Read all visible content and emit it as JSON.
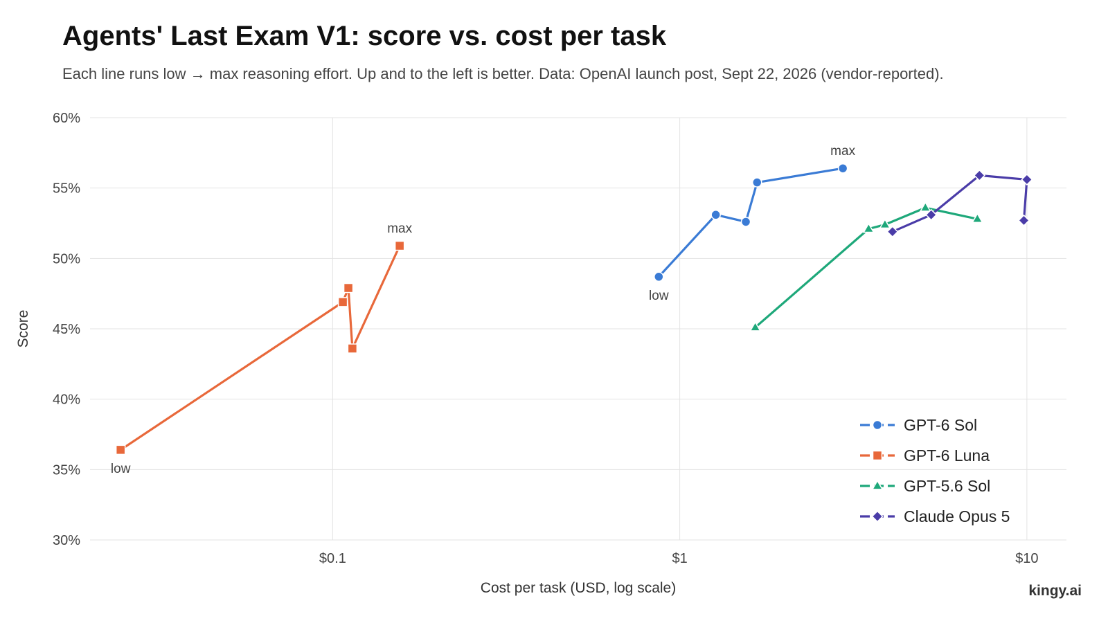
{
  "title": "Agents' Last Exam V1: score vs. cost per task",
  "subtitle": "Each line runs low → max reasoning effort. Up and to the left is better. Data: OpenAI launch post, Sept 22, 2026 (vendor-reported).",
  "brand": "kingy.ai",
  "chart_data": {
    "type": "line",
    "xlabel": "Cost per task (USD, log scale)",
    "ylabel": "Score",
    "x_scale": "log",
    "xlim": [
      0.02,
      13
    ],
    "ylim": [
      30,
      60
    ],
    "x_ticks": [
      {
        "value": 0.1,
        "label": "$0.1"
      },
      {
        "value": 1,
        "label": "$1"
      },
      {
        "value": 10,
        "label": "$10"
      }
    ],
    "y_ticks": [
      {
        "value": 30,
        "label": "30%"
      },
      {
        "value": 35,
        "label": "35%"
      },
      {
        "value": 40,
        "label": "40%"
      },
      {
        "value": 45,
        "label": "45%"
      },
      {
        "value": 50,
        "label": "50%"
      },
      {
        "value": 55,
        "label": "55%"
      },
      {
        "value": 60,
        "label": "60%"
      }
    ],
    "grid": true,
    "legend_position": "bottom-right",
    "series": [
      {
        "name": "GPT-6 Sol",
        "color": "#3a7bd5",
        "marker": "circle",
        "points": [
          [
            0.87,
            48.7
          ],
          [
            1.27,
            53.1
          ],
          [
            1.55,
            52.6
          ],
          [
            1.67,
            55.4
          ],
          [
            2.95,
            56.4
          ]
        ],
        "annotations": [
          {
            "text": "low",
            "point": 0,
            "position": "below"
          },
          {
            "text": "max",
            "point": 4,
            "position": "above"
          }
        ]
      },
      {
        "name": "GPT-6 Luna",
        "color": "#e8683a",
        "marker": "square",
        "points": [
          [
            0.0245,
            36.4
          ],
          [
            0.107,
            46.9
          ],
          [
            0.111,
            47.9
          ],
          [
            0.114,
            43.6
          ],
          [
            0.156,
            50.9
          ]
        ],
        "annotations": [
          {
            "text": "low",
            "point": 0,
            "position": "below"
          },
          {
            "text": "max",
            "point": 4,
            "position": "above"
          }
        ]
      },
      {
        "name": "GPT-5.6 Sol",
        "color": "#1ea87a",
        "marker": "triangle",
        "points": [
          [
            1.65,
            45.1
          ],
          [
            3.5,
            52.1
          ],
          [
            3.9,
            52.4
          ],
          [
            5.1,
            53.6
          ],
          [
            7.2,
            52.8
          ]
        ],
        "annotations": []
      },
      {
        "name": "Claude Opus 5",
        "color": "#4a3ca8",
        "marker": "diamond",
        "points": [
          [
            4.1,
            51.9
          ],
          [
            5.3,
            53.1
          ],
          [
            7.3,
            55.9
          ],
          [
            10.0,
            55.6
          ],
          [
            9.8,
            52.7
          ]
        ],
        "annotations": []
      }
    ]
  }
}
